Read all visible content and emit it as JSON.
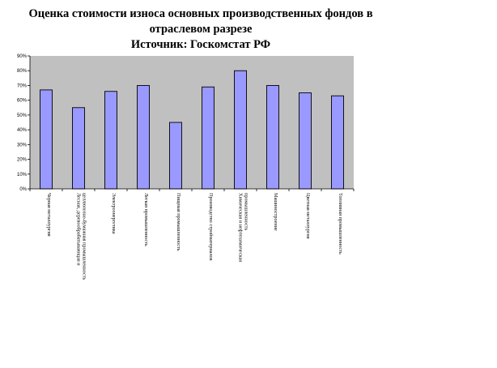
{
  "title_lines": [
    "Оценка стоимости износа основных производственных фондов в",
    "отраслевом разрезе",
    "Источник: Госкомстат РФ"
  ],
  "colors": {
    "plot_background": "#c0c0c0",
    "bar_fill": "#9999ff",
    "bar_stroke": "#000000"
  },
  "chart_data": {
    "type": "bar",
    "title": "Оценка стоимости износа основных производственных фондов в отраслевом разрезе",
    "subtitle": "Источник: Госкомстат РФ",
    "xlabel": "",
    "ylabel": "",
    "ylim": [
      0,
      90
    ],
    "y_ticks": [
      "0%",
      "10%",
      "20%",
      "30%",
      "40%",
      "50%",
      "60%",
      "70%",
      "80%",
      "90%"
    ],
    "grid": false,
    "categories": [
      "Черная металлургия",
      "Лесная, деревообрабатывающая и целлюлозно-бумажная промышленность",
      "Электроэнергетика",
      "Легкая промышленность",
      "Пищевая промышленность",
      "Производство стройматериалов",
      "Химическая и нефтехимическая промышленность",
      "Машиностроение",
      "Цветная металлургия",
      "Топливная промышленность"
    ],
    "values": [
      67,
      55,
      66,
      70,
      45,
      69,
      80,
      70,
      65,
      63
    ]
  }
}
